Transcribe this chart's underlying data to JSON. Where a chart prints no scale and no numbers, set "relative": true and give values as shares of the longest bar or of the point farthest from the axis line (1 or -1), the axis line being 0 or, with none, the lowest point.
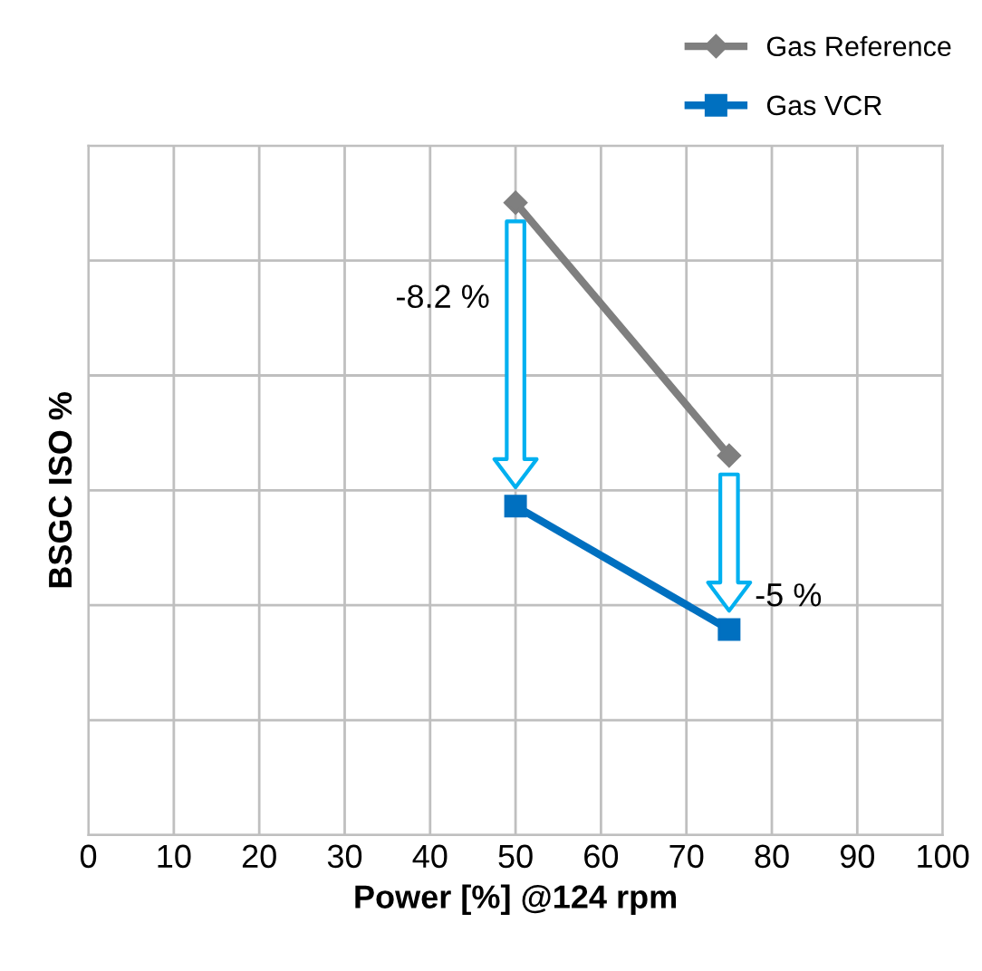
{
  "chart_data": {
    "type": "line",
    "xlabel": "Power [%] @124 rpm",
    "ylabel": "BSGC ISO %",
    "relative": true,
    "x": [
      50,
      75
    ],
    "xlim": [
      0,
      100
    ],
    "xticks": [
      0,
      10,
      20,
      30,
      40,
      50,
      60,
      70,
      80,
      90,
      100
    ],
    "grid": true,
    "legend": "top right",
    "series": [
      {
        "name": "Gas Reference",
        "color": "#7f7f7f",
        "marker": "diamond",
        "values": [
          1,
          0.6
        ]
      },
      {
        "name": "Gas VCR",
        "color": "#0070c0",
        "marker": "square",
        "values": [
          0.52,
          0.325
        ]
      }
    ],
    "annotations": [
      "-8.2 %",
      "-5 %"
    ]
  }
}
